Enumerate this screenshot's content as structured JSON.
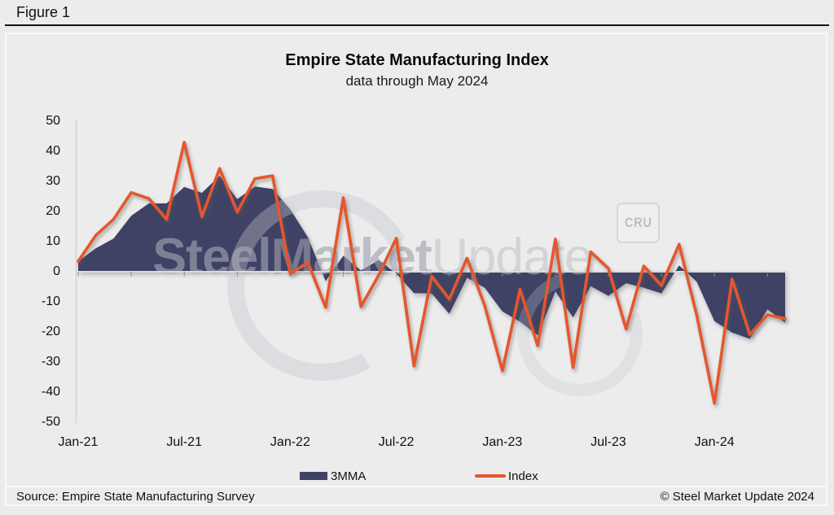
{
  "figure_label": "Figure 1",
  "watermark": {
    "steel": "Steel",
    "market": "Market",
    "update": "Update",
    "cru": "CRU"
  },
  "footer": {
    "source": "Source: Empire State Manufacturing Survey",
    "copyright": "© Steel Market Update 2024"
  },
  "chart_data": {
    "type": "line",
    "title": "Empire State Manufacturing Index",
    "subtitle": "data through May 2024",
    "background": "#ececec",
    "grid": false,
    "legend_position": "bottom",
    "ylim": [
      -50,
      50
    ],
    "yticks": [
      50,
      40,
      30,
      20,
      10,
      0,
      -10,
      -20,
      -30,
      -40,
      -50
    ],
    "x_tick_labels": [
      {
        "index": 0,
        "label": "Jan-21"
      },
      {
        "index": 6,
        "label": "Jul-21"
      },
      {
        "index": 12,
        "label": "Jan-22"
      },
      {
        "index": 18,
        "label": "Jul-22"
      },
      {
        "index": 24,
        "label": "Jan-23"
      },
      {
        "index": 30,
        "label": "Jul-23"
      },
      {
        "index": 36,
        "label": "Jan-24"
      }
    ],
    "minor_tick_every": 3,
    "x": [
      "Jan-21",
      "Feb-21",
      "Mar-21",
      "Apr-21",
      "May-21",
      "Jun-21",
      "Jul-21",
      "Aug-21",
      "Sep-21",
      "Oct-21",
      "Nov-21",
      "Dec-21",
      "Jan-22",
      "Feb-22",
      "Mar-22",
      "Apr-22",
      "May-22",
      "Jun-22",
      "Jul-22",
      "Aug-22",
      "Sep-22",
      "Oct-22",
      "Nov-22",
      "Dec-22",
      "Jan-23",
      "Feb-23",
      "Mar-23",
      "Apr-23",
      "May-23",
      "Jun-23",
      "Jul-23",
      "Aug-23",
      "Sep-23",
      "Oct-23",
      "Nov-23",
      "Dec-23",
      "Jan-24",
      "Feb-24",
      "Mar-24",
      "Apr-24",
      "May-24"
    ],
    "series": [
      {
        "name": "3MMA",
        "type": "area",
        "color": "#3F4265",
        "values": [
          3.5,
          7.8,
          11.0,
          18.6,
          22.7,
          22.7,
          28.2,
          26.2,
          31.9,
          24.1,
          28.3,
          27.5,
          20.7,
          11.4,
          -3.1,
          5.3,
          0.4,
          3.9,
          -0.6,
          -7.1,
          -7.2,
          -14.0,
          -2.0,
          -5.3,
          -13.2,
          -16.6,
          -21.1,
          -6.5,
          -15.2,
          -4.8,
          -8.0,
          -3.8,
          -5.3,
          -7.2,
          2.1,
          -3.3,
          -16.4,
          -20.2,
          -22.3,
          -12.5,
          -16.9
        ]
      },
      {
        "name": "Index",
        "type": "line",
        "color": "#E6562C",
        "values": [
          3.5,
          12.1,
          17.4,
          26.3,
          24.3,
          17.4,
          43.0,
          18.3,
          34.3,
          19.8,
          30.9,
          31.9,
          -0.7,
          3.1,
          -11.8,
          24.6,
          -11.6,
          -1.2,
          11.1,
          -31.3,
          -1.5,
          -9.1,
          4.5,
          -11.2,
          -32.9,
          -5.8,
          -24.6,
          10.8,
          -31.8,
          6.6,
          1.1,
          -19.0,
          1.9,
          -4.6,
          9.1,
          -14.5,
          -43.7,
          -2.4,
          -20.9,
          -14.3,
          -15.6
        ]
      }
    ]
  }
}
